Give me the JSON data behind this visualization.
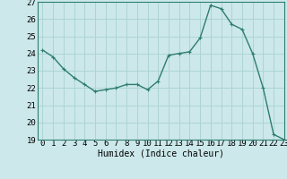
{
  "x": [
    0,
    1,
    2,
    3,
    4,
    5,
    6,
    7,
    8,
    9,
    10,
    11,
    12,
    13,
    14,
    15,
    16,
    17,
    18,
    19,
    20,
    21,
    22,
    23
  ],
  "y": [
    24.2,
    23.8,
    23.1,
    22.6,
    22.2,
    21.8,
    21.9,
    22.0,
    22.2,
    22.2,
    21.9,
    22.4,
    23.9,
    24.0,
    24.1,
    24.9,
    26.8,
    26.6,
    25.7,
    25.4,
    24.0,
    22.0,
    19.3,
    19.0
  ],
  "line_color": "#2e7d6e",
  "marker": "+",
  "marker_size": 3,
  "bg_color": "#cce8ea",
  "grid_color": "#aed4d6",
  "xlabel": "Humidex (Indice chaleur)",
  "ylim": [
    19,
    27
  ],
  "xlim": [
    -0.5,
    23
  ],
  "yticks": [
    19,
    20,
    21,
    22,
    23,
    24,
    25,
    26,
    27
  ],
  "xticks": [
    0,
    1,
    2,
    3,
    4,
    5,
    6,
    7,
    8,
    9,
    10,
    11,
    12,
    13,
    14,
    15,
    16,
    17,
    18,
    19,
    20,
    21,
    22,
    23
  ],
  "xlabel_fontsize": 7,
  "tick_fontsize": 6.5,
  "line_width": 1.0
}
